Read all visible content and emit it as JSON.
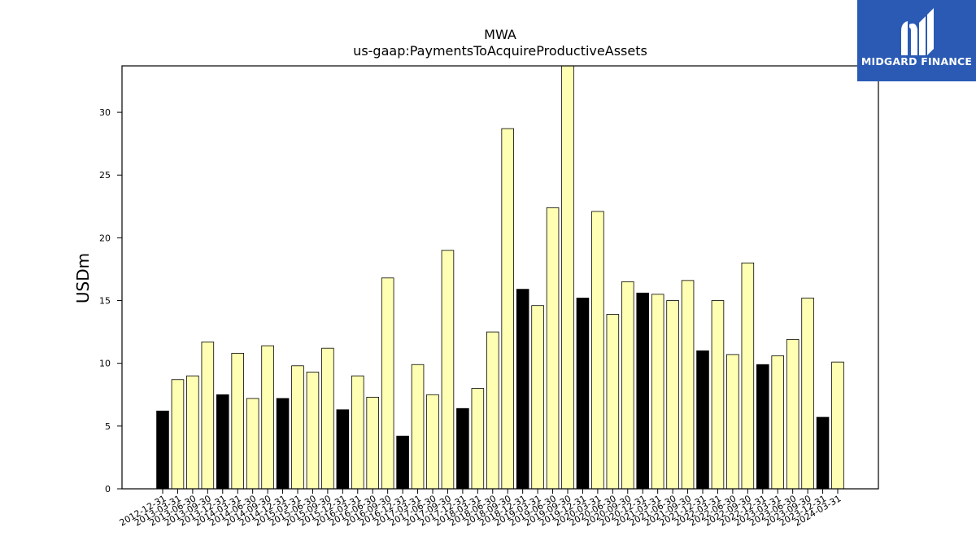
{
  "chart_data": {
    "type": "bar",
    "title": "MWA",
    "subtitle": "us-gaap:PaymentsToAcquireProductiveAssets",
    "xlabel": "",
    "ylabel": "USDm",
    "ylim": [
      0,
      33.7
    ],
    "yticks": [
      0,
      5,
      10,
      15,
      20,
      25,
      30
    ],
    "grid": false,
    "colors": {
      "q4": "#000000",
      "other": "#ffffb3",
      "edge": "#000000"
    },
    "categories": [
      "2012-12-31",
      "2013-03-31",
      "2013-06-30",
      "2013-09-30",
      "2013-12-31",
      "2014-03-31",
      "2014-06-30",
      "2014-09-30",
      "2014-12-31",
      "2015-03-31",
      "2015-06-30",
      "2015-09-30",
      "2015-12-31",
      "2016-03-31",
      "2016-06-30",
      "2016-09-30",
      "2016-12-31",
      "2017-03-31",
      "2017-06-30",
      "2017-09-30",
      "2017-12-31",
      "2018-03-31",
      "2018-06-30",
      "2018-09-30",
      "2018-12-31",
      "2019-03-31",
      "2019-06-30",
      "2019-09-30",
      "2019-12-31",
      "2020-03-31",
      "2020-06-30",
      "2020-09-30",
      "2020-12-31",
      "2021-03-31",
      "2021-06-30",
      "2021-09-30",
      "2021-12-31",
      "2022-03-31",
      "2022-06-30",
      "2022-09-30",
      "2022-12-31",
      "2023-03-31",
      "2023-06-30",
      "2023-09-30",
      "2023-12-31",
      "2024-03-31"
    ],
    "values": [
      6.2,
      8.7,
      9.0,
      11.7,
      7.5,
      10.8,
      7.2,
      11.4,
      7.2,
      9.8,
      9.3,
      11.2,
      6.3,
      9.0,
      7.3,
      16.8,
      4.2,
      9.9,
      7.5,
      19.0,
      6.4,
      8.0,
      12.5,
      28.7,
      15.9,
      14.6,
      22.4,
      33.7,
      15.2,
      22.1,
      13.9,
      16.5,
      15.6,
      15.5,
      15.0,
      16.6,
      11.0,
      15.0,
      10.7,
      18.0,
      9.9,
      10.6,
      11.9,
      15.2,
      5.7,
      10.1
    ]
  },
  "logo": {
    "text": "MIDGARD FINANCE",
    "icon": "midgard-logo-icon",
    "background": "#2a5ab4"
  }
}
